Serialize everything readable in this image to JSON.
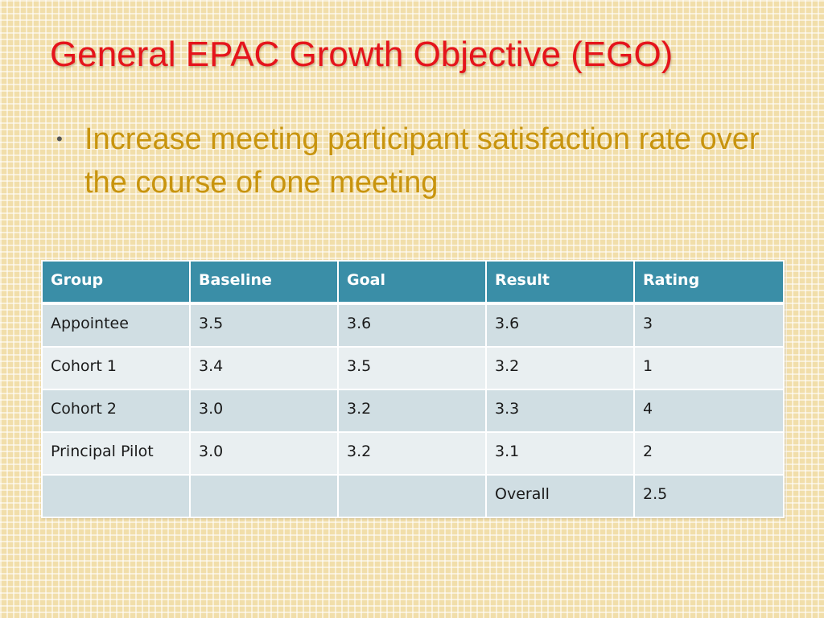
{
  "slide": {
    "title": "General EPAC Growth Objective (EGO)",
    "bullets": [
      "Increase meeting participant satisfaction rate over the course of one meeting"
    ]
  },
  "table": {
    "headers": [
      "Group",
      "Baseline",
      "Goal",
      "Result",
      "Rating"
    ],
    "rows": [
      [
        "Appointee",
        "3.5",
        "3.6",
        "3.6",
        "3"
      ],
      [
        "Cohort 1",
        "3.4",
        "3.5",
        "3.2",
        "1"
      ],
      [
        "Cohort 2",
        "3.0",
        "3.2",
        "3.3",
        "4"
      ],
      [
        "Principal Pilot",
        "3.0",
        "3.2",
        "3.1",
        "2"
      ],
      [
        "",
        "",
        "",
        "Overall",
        "2.5"
      ]
    ]
  },
  "colors": {
    "title": "#e5141b",
    "bullet_text": "#c8940e",
    "header_bg": "#3a8ea7",
    "row_dark": "#d0dee3",
    "row_light": "#e9eff1",
    "background": "#f1deaa"
  }
}
